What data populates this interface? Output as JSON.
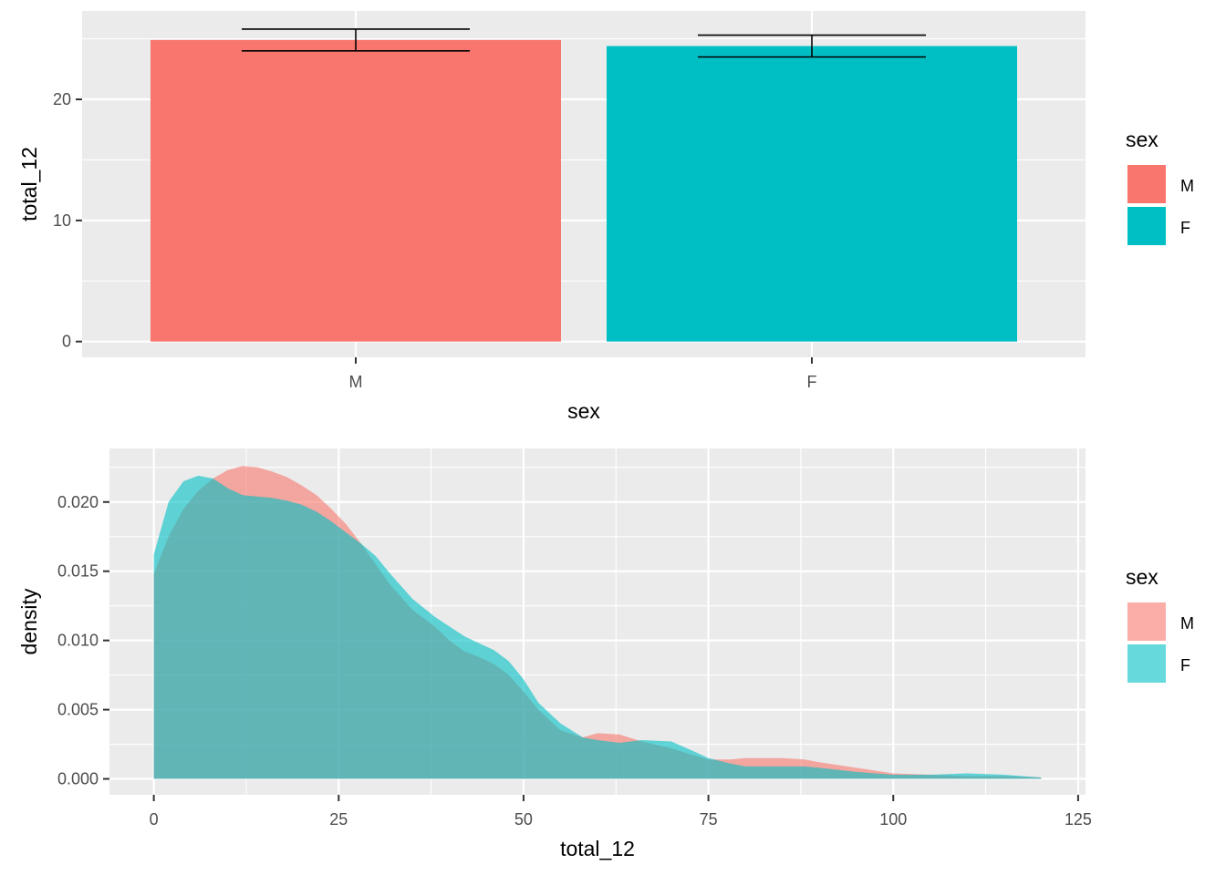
{
  "colors": {
    "M": "#F8766D",
    "F": "#00BFC4",
    "panel": "#EBEBEB"
  },
  "chart_data": [
    {
      "type": "bar",
      "categories": [
        "M",
        "F"
      ],
      "values": [
        24.9,
        24.4
      ],
      "error_low": [
        24.0,
        23.5
      ],
      "error_high": [
        25.8,
        25.3
      ],
      "xlabel": "sex",
      "ylabel": "total_12",
      "ylim": [
        -1.3,
        27.3
      ],
      "y_ticks": [
        0,
        10,
        20
      ],
      "y_tick_labels": [
        "0",
        "10",
        "20"
      ],
      "grid": true,
      "legend": {
        "title": "sex",
        "position": "right",
        "entries": [
          "M",
          "F"
        ]
      }
    },
    {
      "type": "area",
      "xlabel": "total_12",
      "ylabel": "density",
      "xlim": [
        -6,
        126
      ],
      "ylim": [
        -0.00115,
        0.02387
      ],
      "x_ticks": [
        0,
        25,
        50,
        75,
        100,
        125
      ],
      "x_tick_labels": [
        "0",
        "25",
        "50",
        "75",
        "100",
        "125"
      ],
      "y_ticks": [
        0,
        0.005,
        0.01,
        0.015,
        0.02
      ],
      "y_tick_labels": [
        "0.000",
        "0.005",
        "0.010",
        "0.015",
        "0.020"
      ],
      "grid": true,
      "legend": {
        "title": "sex",
        "position": "right",
        "entries": [
          "M",
          "F"
        ]
      },
      "series": [
        {
          "name": "M",
          "x": [
            0,
            2,
            4,
            6,
            8,
            10,
            12,
            14,
            16,
            18,
            20,
            22,
            24,
            26,
            28,
            30,
            32,
            35,
            38,
            40,
            42,
            44,
            46,
            48,
            50,
            52,
            55,
            58,
            60,
            63,
            66,
            70,
            73,
            75,
            78,
            80,
            85,
            88,
            90,
            95,
            100,
            105,
            110,
            115,
            120
          ],
          "y": [
            0.0148,
            0.0175,
            0.0195,
            0.0208,
            0.0217,
            0.0223,
            0.0226,
            0.0225,
            0.0222,
            0.0218,
            0.0212,
            0.0205,
            0.0195,
            0.0184,
            0.017,
            0.0155,
            0.014,
            0.0122,
            0.011,
            0.01,
            0.0092,
            0.0088,
            0.0083,
            0.0075,
            0.0063,
            0.005,
            0.0035,
            0.003,
            0.0033,
            0.0032,
            0.0027,
            0.0022,
            0.0017,
            0.0014,
            0.0014,
            0.0015,
            0.0015,
            0.0014,
            0.0012,
            0.0008,
            0.0004,
            0.0003,
            0.0002,
            0.0002,
            0.0001
          ]
        },
        {
          "name": "F",
          "x": [
            0,
            2,
            4,
            6,
            8,
            10,
            12,
            14,
            16,
            18,
            20,
            22,
            24,
            26,
            28,
            30,
            32,
            35,
            38,
            40,
            42,
            44,
            46,
            48,
            50,
            52,
            55,
            58,
            60,
            63,
            66,
            70,
            73,
            75,
            78,
            80,
            85,
            88,
            90,
            95,
            100,
            105,
            110,
            115,
            120
          ],
          "y": [
            0.0162,
            0.02,
            0.0215,
            0.0219,
            0.0217,
            0.021,
            0.0205,
            0.0204,
            0.0203,
            0.0201,
            0.0198,
            0.0193,
            0.0186,
            0.0178,
            0.017,
            0.0161,
            0.0148,
            0.013,
            0.0117,
            0.011,
            0.0103,
            0.0098,
            0.0093,
            0.0085,
            0.0072,
            0.0055,
            0.004,
            0.003,
            0.0028,
            0.0026,
            0.0028,
            0.0027,
            0.002,
            0.0015,
            0.0011,
            0.0009,
            0.0009,
            0.0009,
            0.0008,
            0.0005,
            0.0003,
            0.0003,
            0.0004,
            0.0003,
            0.0001
          ]
        }
      ]
    }
  ]
}
